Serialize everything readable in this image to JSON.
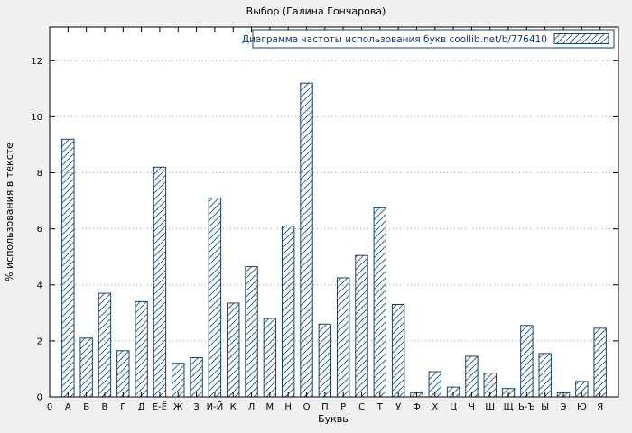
{
  "chart_data": {
    "type": "bar",
    "title": "Выбор (Галина Гончарова)",
    "xlabel": "Буквы",
    "ylabel": "% использования в тексте",
    "legend": "Диаграмма частоты использования букв coollib.net/b/776410",
    "legend_position": "top-right",
    "grid": true,
    "origin_label": "0",
    "categories": [
      "А",
      "Б",
      "В",
      "Г",
      "Д",
      "Е-Ё",
      "Ж",
      "З",
      "И-Й",
      "К",
      "Л",
      "М",
      "Н",
      "О",
      "П",
      "Р",
      "С",
      "Т",
      "У",
      "Ф",
      "Х",
      "Ц",
      "Ч",
      "Ш",
      "Щ",
      "Ь-Ъ",
      "Ы",
      "Э",
      "Ю",
      "Я"
    ],
    "values": [
      9.2,
      2.1,
      3.7,
      1.65,
      3.4,
      8.2,
      1.2,
      1.4,
      7.1,
      3.35,
      4.65,
      2.8,
      6.1,
      11.2,
      2.6,
      4.25,
      5.05,
      6.75,
      3.3,
      0.15,
      0.9,
      0.35,
      1.45,
      0.85,
      0.3,
      2.55,
      1.55,
      0.15,
      0.55,
      2.45
    ],
    "ylim": [
      0,
      13.2
    ],
    "yticks": [
      0,
      2,
      4,
      6,
      8,
      10,
      12
    ],
    "colors": {
      "page_background": "#f0f0f0",
      "plot_background": "#ffffff",
      "bar_outline": "#16416e",
      "bar_hatch": "#33659f",
      "legend_text": "#123a7a",
      "grid": "#a8a8a8"
    }
  }
}
